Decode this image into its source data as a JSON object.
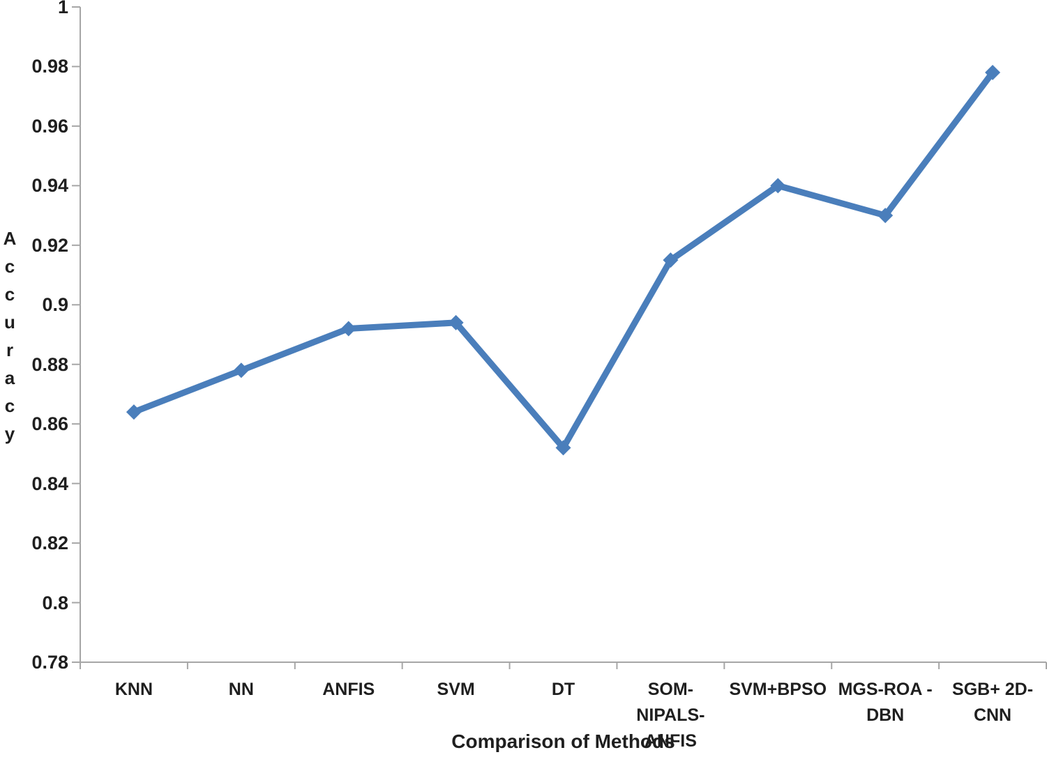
{
  "chart_data": {
    "type": "line",
    "xlabel": "Comparison of Methods",
    "ylabel": "Accuracy",
    "categories": [
      "KNN",
      "NN",
      "ANFIS",
      "SVM",
      "DT",
      "SOM- NIPALS-\nANFIS",
      "SVM+BPSO",
      "MGS-ROA -\nDBN",
      "SGB+ 2D-CNN"
    ],
    "series": [
      {
        "name": "Accuracy",
        "values": [
          0.864,
          0.878,
          0.892,
          0.894,
          0.852,
          0.915,
          0.94,
          0.93,
          0.978
        ]
      }
    ],
    "y_tick_labels": [
      "1",
      "0.98",
      "0.96",
      "0.94",
      "0.92",
      "0.9",
      "0.88",
      "0.86",
      "0.84",
      "0.82",
      "0.8",
      "0.78"
    ],
    "ylim": [
      0.78,
      1.0
    ],
    "grid": "off",
    "legend": "none",
    "marker_shape": "diamond",
    "colors": {
      "series": "#4A7EBB",
      "axis": "#A6A6A6",
      "text": "#1F1F1F"
    }
  }
}
